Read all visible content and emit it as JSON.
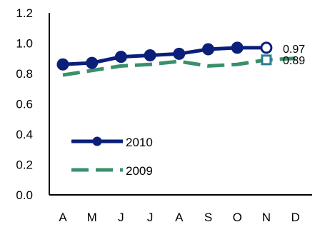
{
  "chart_data": {
    "type": "line",
    "categories": [
      "A",
      "M",
      "J",
      "J",
      "A",
      "S",
      "O",
      "N",
      "D"
    ],
    "series": [
      {
        "name": "2010",
        "values": [
          0.86,
          0.87,
          0.91,
          0.92,
          0.93,
          0.96,
          0.97,
          0.97,
          null
        ],
        "color": "#0b1f7a",
        "style": "solid",
        "marker": "circle",
        "end_label": "0.97"
      },
      {
        "name": "2009",
        "values": [
          0.79,
          0.82,
          0.85,
          0.86,
          0.88,
          0.85,
          0.86,
          0.89,
          0.9
        ],
        "color": "#3a8f6a",
        "style": "dashed",
        "marker": "none",
        "end_label": "0.89"
      }
    ],
    "ylim": [
      0.0,
      1.2
    ],
    "y_ticks": [
      "0.0",
      "0.2",
      "0.4",
      "0.6",
      "0.8",
      "1.0",
      "1.2"
    ],
    "grid": false,
    "legend_position": "bottom-left",
    "highlight_marker_colors": {
      "2010": "#0b1f7a",
      "2009": "#2a7f8f"
    }
  }
}
